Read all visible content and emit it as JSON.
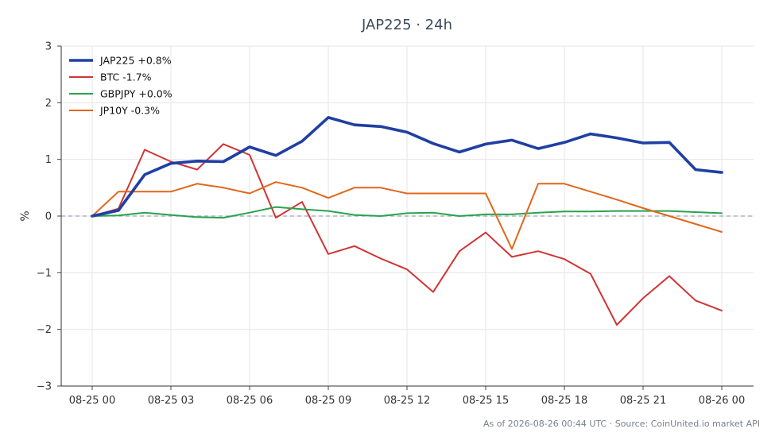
{
  "chart_data": {
    "type": "line",
    "title": "JAP225 · 24h",
    "ylabel": "%",
    "xlabel": "",
    "ylim": [
      -3,
      3
    ],
    "yticks": [
      -3,
      -2,
      -1,
      0,
      1,
      2,
      3
    ],
    "ytick_labels": [
      "−3",
      "−2",
      "−1",
      "0",
      "1",
      "2",
      "3"
    ],
    "x": [
      "08-25 00",
      "08-25 01",
      "08-25 02",
      "08-25 03",
      "08-25 04",
      "08-25 05",
      "08-25 06",
      "08-25 07",
      "08-25 08",
      "08-25 09",
      "08-25 10",
      "08-25 11",
      "08-25 12",
      "08-25 13",
      "08-25 14",
      "08-25 15",
      "08-25 16",
      "08-25 17",
      "08-25 18",
      "08-25 19",
      "08-25 20",
      "08-25 21",
      "08-25 22",
      "08-25 23",
      "08-26 00"
    ],
    "xtick_labels": [
      "08-25 00",
      "08-25 03",
      "08-25 06",
      "08-25 09",
      "08-25 12",
      "08-25 15",
      "08-25 18",
      "08-25 21",
      "08-26 00"
    ],
    "grid": true,
    "legend_position": "top-left",
    "zero_reference_line": true,
    "series": [
      {
        "name": "JAP225 +0.8%",
        "color": "#1f3fa3",
        "emphasis": true,
        "values": [
          0.0,
          0.1,
          0.73,
          0.93,
          0.97,
          0.96,
          1.22,
          1.07,
          1.32,
          1.74,
          1.61,
          1.58,
          1.48,
          1.28,
          1.13,
          1.27,
          1.34,
          1.19,
          1.3,
          1.45,
          1.38,
          1.29,
          1.3,
          0.82,
          0.77
        ]
      },
      {
        "name": "BTC -1.7%",
        "color": "#d03434",
        "emphasis": false,
        "values": [
          0.0,
          0.13,
          1.17,
          0.96,
          0.82,
          1.27,
          1.08,
          -0.03,
          0.25,
          -0.67,
          -0.53,
          -0.75,
          -0.94,
          -1.34,
          -0.62,
          -0.29,
          -0.72,
          -0.62,
          -0.76,
          -1.02,
          -1.92,
          -1.45,
          -1.06,
          -1.49,
          -1.67
        ]
      },
      {
        "name": "GBPJPY +0.0%",
        "color": "#2aa24e",
        "emphasis": false,
        "values": [
          0.0,
          0.01,
          0.06,
          0.02,
          -0.02,
          -0.03,
          0.06,
          0.16,
          0.12,
          0.09,
          0.02,
          0.0,
          0.05,
          0.06,
          0.0,
          0.03,
          0.03,
          0.06,
          0.08,
          0.08,
          0.09,
          0.09,
          0.09,
          0.07,
          0.05
        ]
      },
      {
        "name": "JP10Y -0.3%",
        "color": "#e2661b",
        "emphasis": false,
        "values": [
          0.0,
          0.43,
          0.43,
          0.43,
          0.57,
          0.5,
          0.4,
          0.6,
          0.5,
          0.32,
          0.5,
          0.5,
          0.4,
          0.4,
          0.4,
          0.4,
          -0.58,
          0.57,
          0.57,
          0.43,
          0.29,
          0.14,
          0.0,
          -0.14,
          -0.28
        ]
      }
    ],
    "footnote": "As of 2026-08-26 00:44 UTC · Source: CoinUnited.io market API"
  }
}
